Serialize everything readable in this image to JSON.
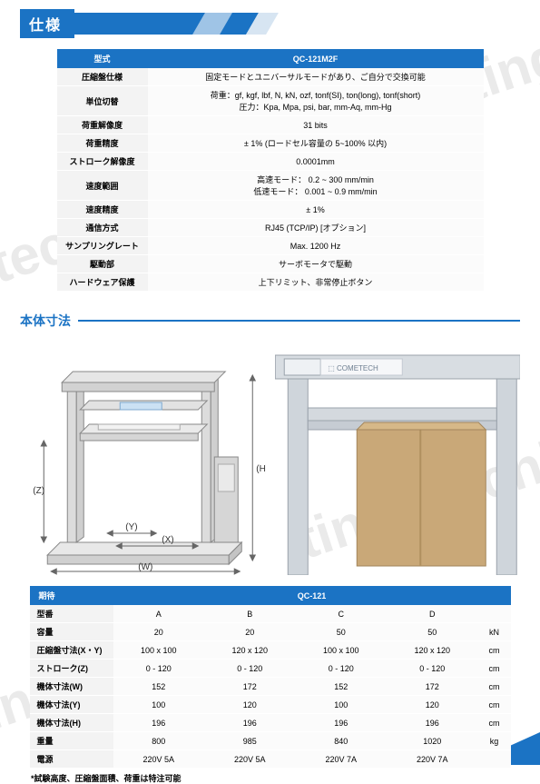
{
  "header": {
    "title": "仕様"
  },
  "spec": {
    "model_label": "型式",
    "model_value": "QC-121M2F",
    "rows": [
      {
        "label": "圧縮盤仕様",
        "value": "固定モードとユニバーサルモードがあり、ご自分で交換可能"
      },
      {
        "label": "単位切替",
        "value": "荷重：gf, kgf, lbf, N, kN, ozf, tonf(SI), ton(long), tonf(short)\n圧力：Kpa, Mpa, psi, bar, mm-Aq, mm-Hg"
      },
      {
        "label": "荷重解像度",
        "value": "31 bits"
      },
      {
        "label": "荷重精度",
        "value": "± 1% (ロードセル容量の 5~100% 以内)"
      },
      {
        "label": "ストローク解像度",
        "value": "0.0001mm"
      },
      {
        "label": "速度範囲",
        "value": "高速モード： 0.2 ~ 300 mm/min\n低速モード： 0.001 ~ 0.9 mm/min"
      },
      {
        "label": "速度精度",
        "value": "± 1%"
      },
      {
        "label": "通信方式",
        "value": "RJ45 (TCP/IP) [オプション]"
      },
      {
        "label": "サンプリングレート",
        "value": "Max. 1200 Hz"
      },
      {
        "label": "駆動部",
        "value": "サーボモータで駆動"
      },
      {
        "label": "ハードウェア保護",
        "value": "上下リミット、非常停止ボタン"
      }
    ]
  },
  "section2": {
    "heading": "本体寸法"
  },
  "diagram": {
    "dim_z": "(Z)",
    "dim_h": "(H)",
    "dim_y": "(Y)",
    "dim_x": "(X)",
    "dim_w": "(W)"
  },
  "dims": {
    "title": "期待",
    "model_header": "QC-121",
    "col_labels": [
      "A",
      "B",
      "C",
      "D"
    ],
    "rows": [
      {
        "label": "型番",
        "a": "A",
        "b": "B",
        "c": "C",
        "d": "D",
        "unit": ""
      },
      {
        "label": "容量",
        "a": "20",
        "b": "20",
        "c": "50",
        "d": "50",
        "unit": "kN"
      },
      {
        "label": "圧縮盤寸法(X・Y)",
        "a": "100 x 100",
        "b": "120 x 120",
        "c": "100 x 100",
        "d": "120 x 120",
        "unit": "cm"
      },
      {
        "label": "ストローク(Z)",
        "a": "0 - 120",
        "b": "0 - 120",
        "c": "0 - 120",
        "d": "0 - 120",
        "unit": "cm"
      },
      {
        "label": "機体寸法(W)",
        "a": "152",
        "b": "172",
        "c": "152",
        "d": "172",
        "unit": "cm"
      },
      {
        "label": "機体寸法(Y)",
        "a": "100",
        "b": "120",
        "c": "100",
        "d": "120",
        "unit": "cm"
      },
      {
        "label": "機体寸法(H)",
        "a": "196",
        "b": "196",
        "c": "196",
        "d": "196",
        "unit": "cm"
      },
      {
        "label": "重量",
        "a": "800",
        "b": "985",
        "c": "840",
        "d": "1020",
        "unit": "kg"
      },
      {
        "label": "電源",
        "a": "220V 5A",
        "b": "220V 5A",
        "c": "220V 7A",
        "d": "220V 7A",
        "unit": ""
      }
    ]
  },
  "footnote": "*試験高度、圧縮盤面積、荷重は特注可能",
  "colors": {
    "accent": "#1b73c4",
    "row_label_bg": "#f3f3f3",
    "row_value_bg": "#fbfbfb"
  }
}
